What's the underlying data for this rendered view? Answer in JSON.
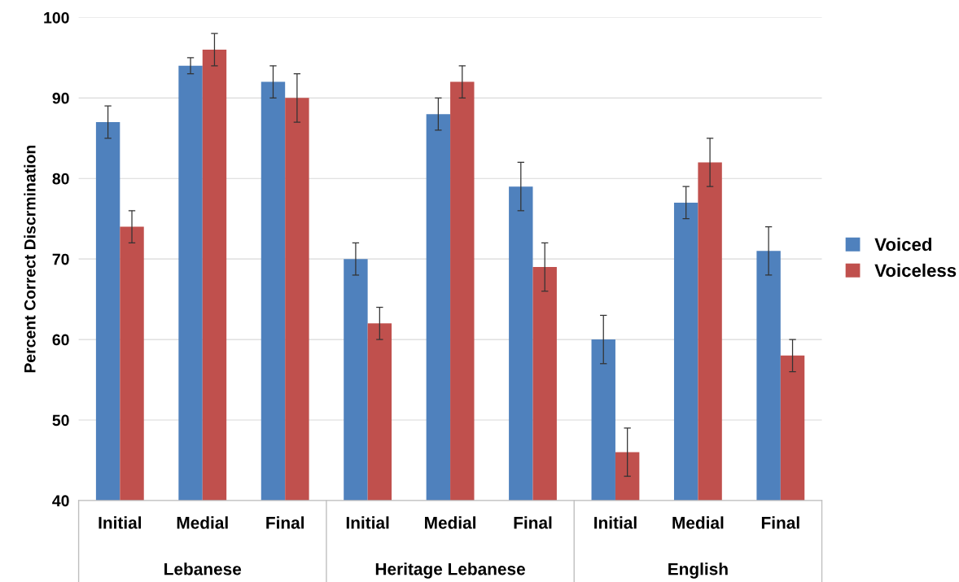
{
  "chart_data": {
    "type": "bar",
    "ylabel": "Percent Correct Discrmination",
    "categories": [
      "Initial",
      "Medial",
      "Final",
      "Initial",
      "Medial",
      "Final",
      "Initial",
      "Medial",
      "Final"
    ],
    "annotations": [
      "Lebanese",
      "Heritage Lebanese",
      "English"
    ],
    "series": [
      {
        "name": "Voiced",
        "color": "#4f81bd",
        "values": [
          87,
          94,
          92,
          70,
          88,
          79,
          60,
          77,
          71
        ],
        "errors": [
          2,
          1,
          2,
          2,
          2,
          3,
          3,
          2,
          3
        ]
      },
      {
        "name": "Voiceless",
        "color": "#c0504d",
        "values": [
          74,
          96,
          90,
          62,
          92,
          69,
          46,
          82,
          58
        ],
        "errors": [
          2,
          2,
          3,
          2,
          2,
          3,
          3,
          3,
          2
        ]
      }
    ],
    "ylim": [
      40,
      100
    ],
    "yticks": [
      40,
      50,
      60,
      70,
      80,
      90,
      100
    ],
    "grid": "y",
    "legend": "right"
  }
}
